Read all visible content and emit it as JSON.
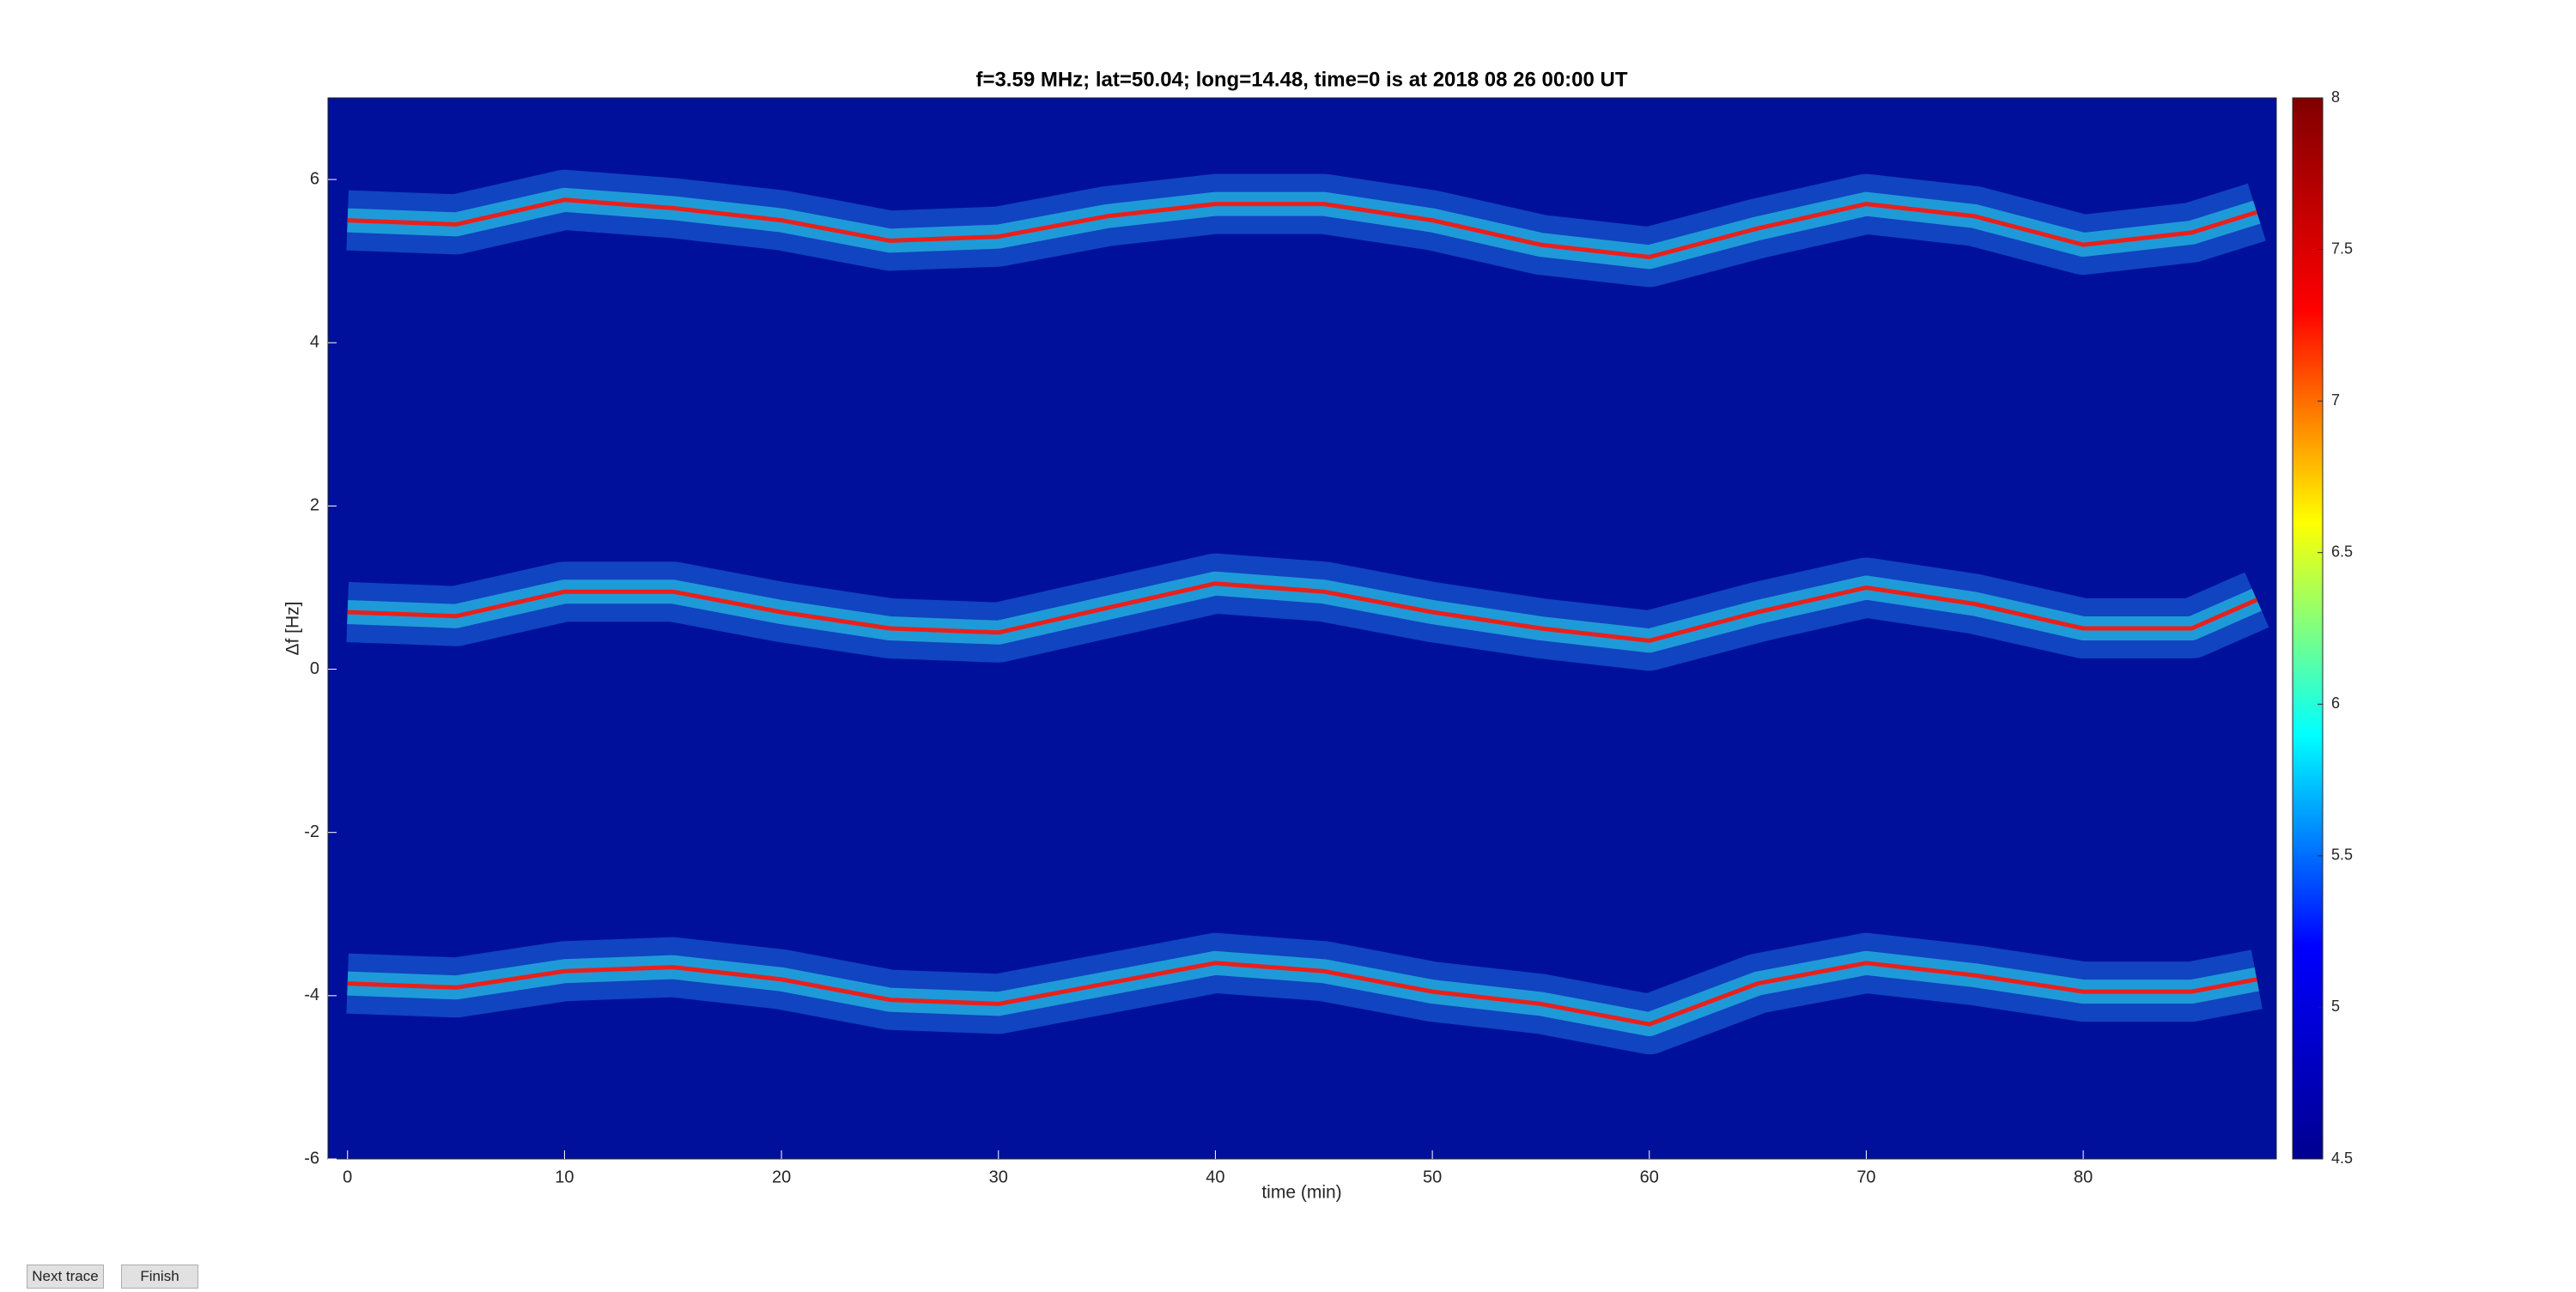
{
  "chart_data": {
    "type": "spectrogram",
    "title": "f=3.59 MHz;  lat=50.04; long=14.48, time=0 is at 2018 08 26 00:00 UT",
    "xlabel": "time (min)",
    "ylabel": "Δf [Hz]",
    "x": [
      0,
      5,
      10,
      15,
      20,
      25,
      30,
      35,
      40,
      45,
      50,
      55,
      60,
      65,
      70,
      75,
      80,
      85,
      88
    ],
    "series": [
      {
        "color": "#e8201c",
        "values": [
          5.5,
          5.45,
          5.75,
          5.65,
          5.5,
          5.25,
          5.3,
          5.55,
          5.7,
          5.7,
          5.5,
          5.2,
          5.05,
          5.4,
          5.7,
          5.55,
          5.2,
          5.35,
          5.6
        ]
      },
      {
        "color": "#e8201c",
        "values": [
          0.7,
          0.65,
          0.95,
          0.95,
          0.7,
          0.5,
          0.45,
          0.75,
          1.05,
          0.95,
          0.7,
          0.5,
          0.35,
          0.7,
          1.0,
          0.8,
          0.5,
          0.5,
          0.85
        ]
      },
      {
        "color": "#e8201c",
        "values": [
          -3.85,
          -3.9,
          -3.7,
          -3.65,
          -3.8,
          -4.05,
          -4.1,
          -3.85,
          -3.6,
          -3.7,
          -3.95,
          -4.1,
          -4.35,
          -3.85,
          -3.6,
          -3.75,
          -3.95,
          -3.95,
          -3.8
        ]
      }
    ],
    "background": "#00109a",
    "xlim": [
      -0.9,
      88.9
    ],
    "xticks": [
      0,
      10,
      20,
      30,
      40,
      50,
      60,
      70,
      80
    ],
    "ylim": [
      -6,
      7
    ],
    "yticks": [
      -6,
      -4,
      -2,
      0,
      2,
      4,
      6
    ],
    "clim": [
      4.5,
      8
    ],
    "cticks": [
      4.5,
      5,
      5.5,
      6,
      6.5,
      7,
      7.5,
      8
    ],
    "colormap": [
      "#00008f",
      "#0000ff",
      "#00ffff",
      "#ffff00",
      "#ff0000",
      "#800000"
    ]
  },
  "buttons": [
    "Next trace",
    "Finish"
  ]
}
